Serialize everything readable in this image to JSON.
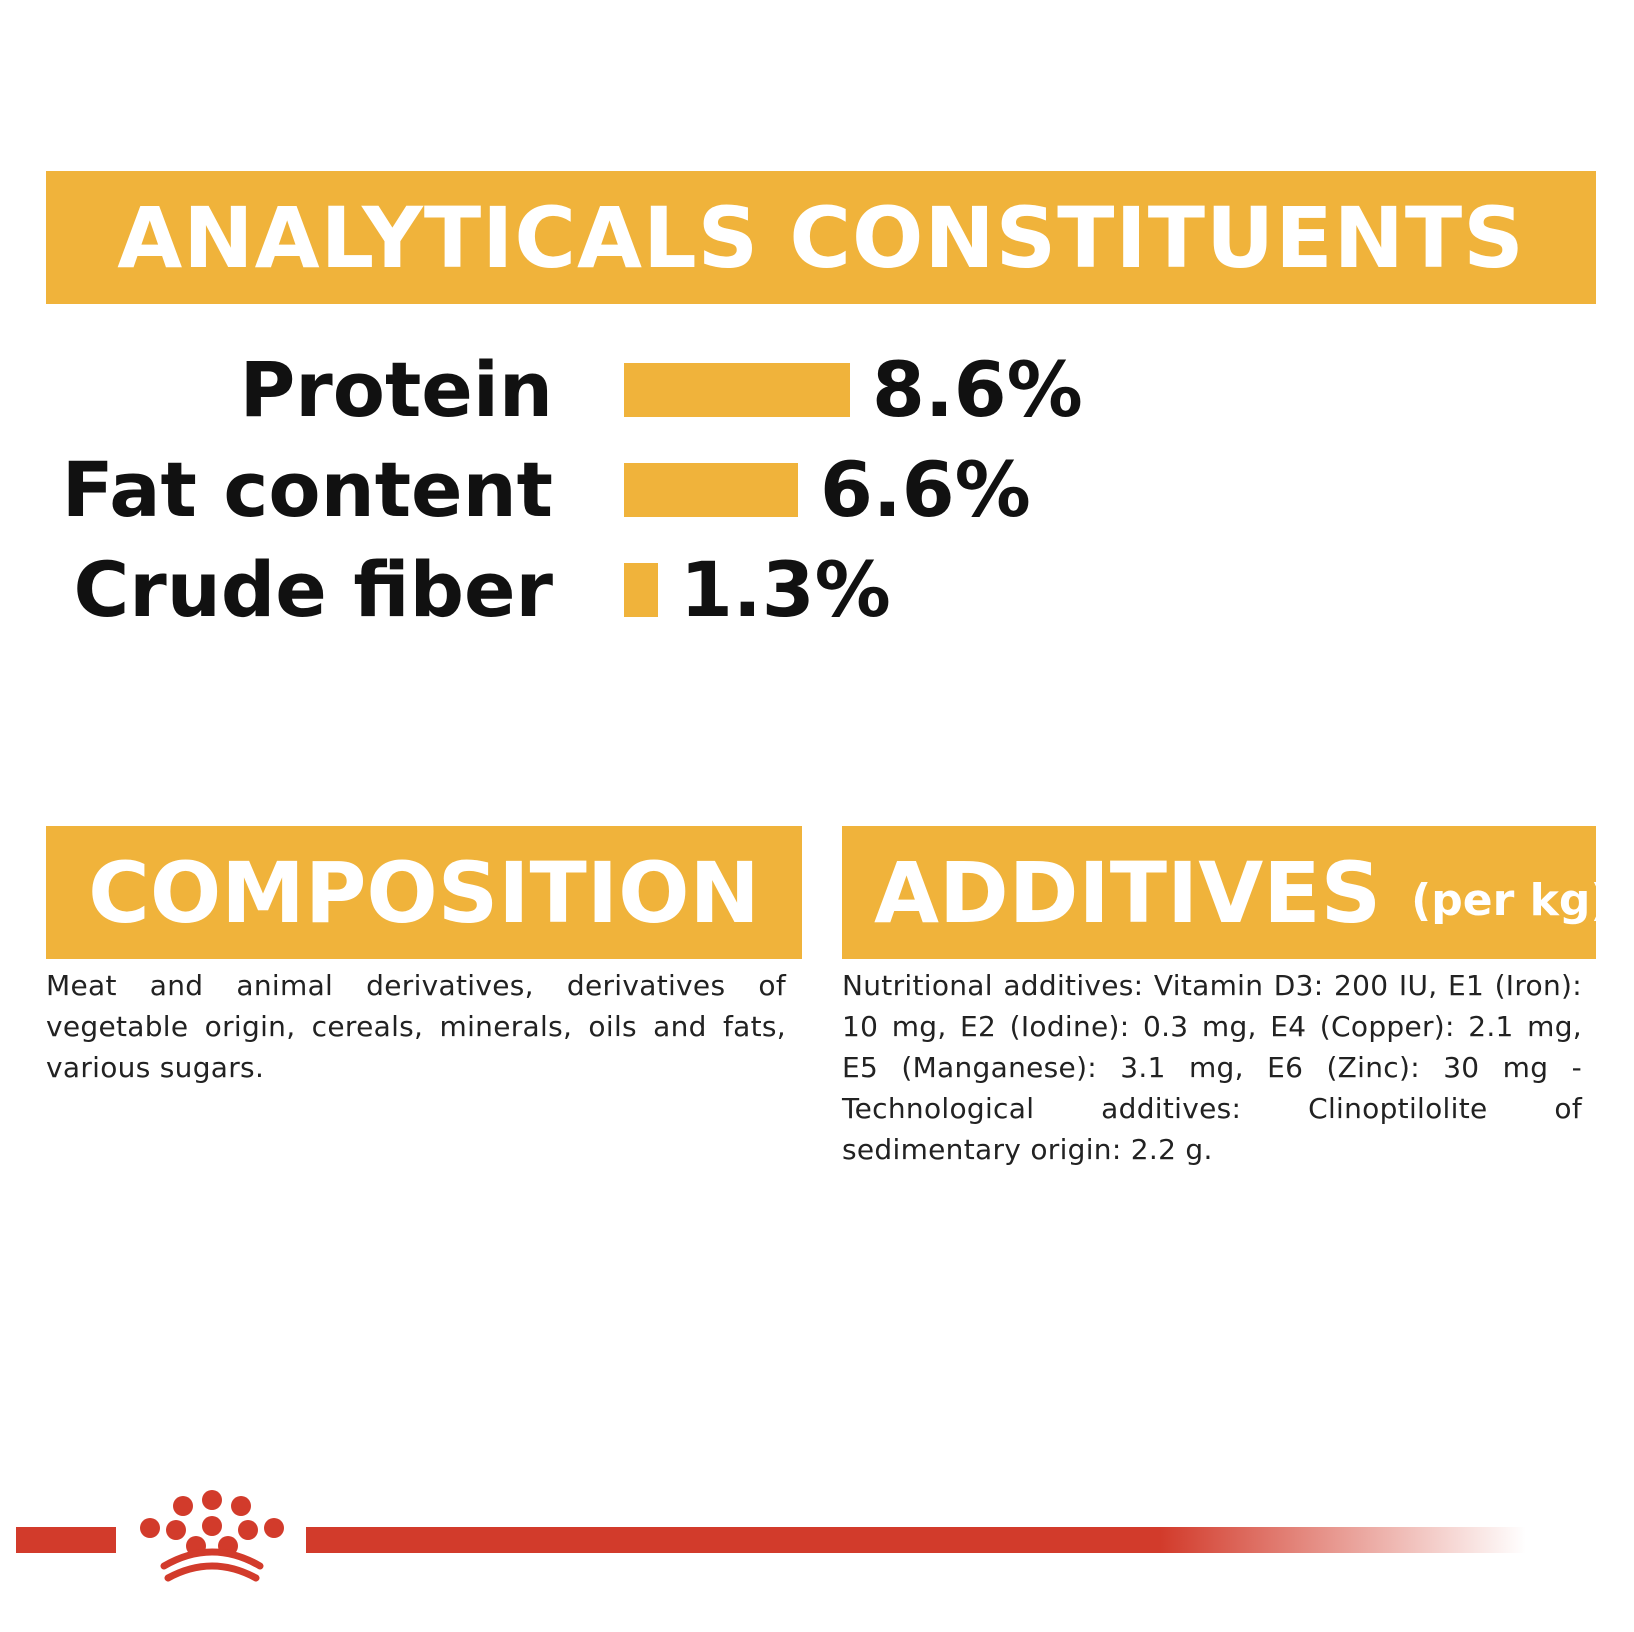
{
  "sections": {
    "analytics": {
      "title": "ANALYTICALS CONSTITUENTS"
    },
    "composition": {
      "title": "COMPOSITION",
      "text": "Meat and animal derivatives, derivatives of vegetable origin, cereals, minerals, oils and fats, various sugars."
    },
    "additives": {
      "title": "ADDITIVES",
      "title_suffix": "(per kg)",
      "text": "Nutritional additives: Vitamin D3: 200 IU, E1 (Iron): 10 mg, E2 (Iodine): 0.3 mg, E4 (Copper): 2.1 mg, E5 (Manganese): 3.1 mg, E6 (Zinc): 30 mg - Technological additives: Clinoptilolite of sedimentary origin: 2.2 g."
    }
  },
  "constituents": [
    {
      "label": "Protein",
      "value": "8.6%",
      "percent": 8.6
    },
    {
      "label": "Fat content",
      "value": "6.6%",
      "percent": 6.6
    },
    {
      "label": "Crude fiber",
      "value": "1.3%",
      "percent": 1.3
    }
  ],
  "colors": {
    "accent": "#f0b33b",
    "brand_red": "#d23b2b",
    "text": "#111111",
    "background": "#ffffff"
  },
  "icons": {
    "logo": "royal-crown-logo"
  }
}
